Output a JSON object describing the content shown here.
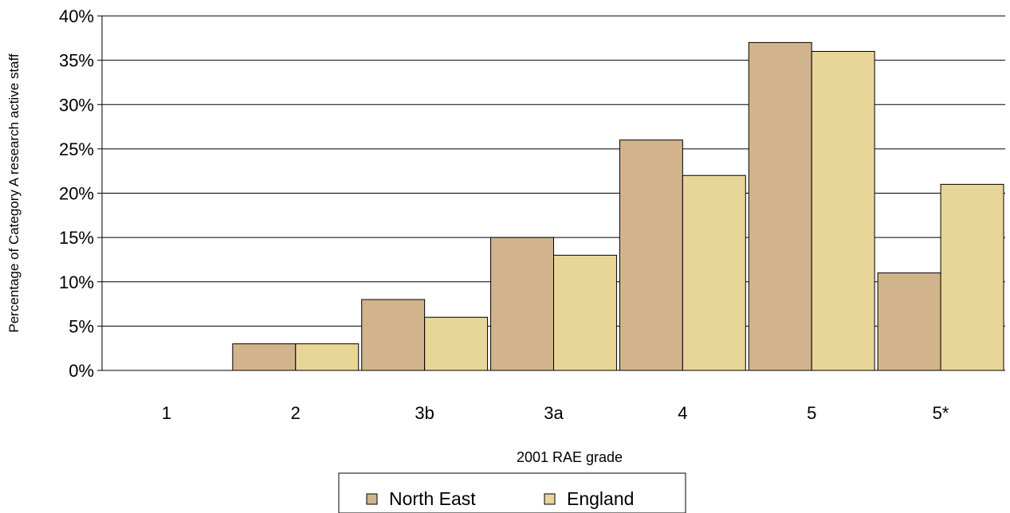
{
  "chart_data": {
    "type": "bar",
    "title": "",
    "xlabel": "2001 RAE grade",
    "ylabel": "Percentage of Category A research active staff",
    "categories": [
      "1",
      "2",
      "3b",
      "3a",
      "4",
      "5",
      "5*"
    ],
    "series": [
      {
        "name": "North East",
        "values": [
          0,
          3,
          8,
          15,
          26,
          37,
          11
        ],
        "color": "#D2B48C"
      },
      {
        "name": "England",
        "values": [
          0,
          3,
          6,
          13,
          22,
          36,
          21
        ],
        "color": "#E8D598"
      }
    ],
    "ylim": [
      0,
      40
    ],
    "yticks": [
      0,
      5,
      10,
      15,
      20,
      25,
      30,
      35,
      40
    ],
    "ytick_labels": [
      "0%",
      "5%",
      "10%",
      "15%",
      "20%",
      "25%",
      "30%",
      "35%",
      "40%"
    ],
    "grid": true,
    "legend_position": "bottom"
  }
}
